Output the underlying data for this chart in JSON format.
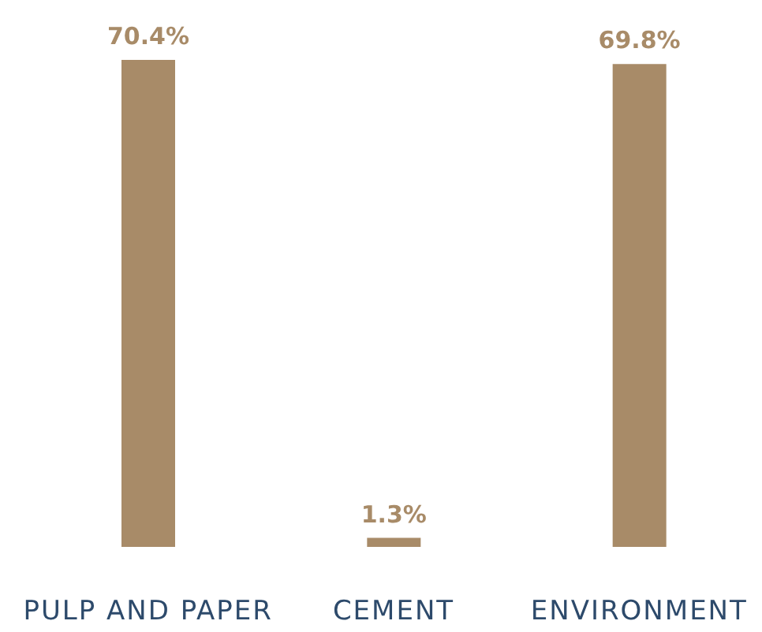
{
  "chart_data": {
    "type": "bar",
    "categories": [
      "PULP AND PAPER",
      "CEMENT",
      "ENVIRONMENT"
    ],
    "values": [
      70.4,
      1.3,
      69.8
    ],
    "value_labels": [
      "70.4%",
      "1.3%",
      "69.8%"
    ],
    "color": "#a88b68",
    "grid": false,
    "legend": false
  }
}
